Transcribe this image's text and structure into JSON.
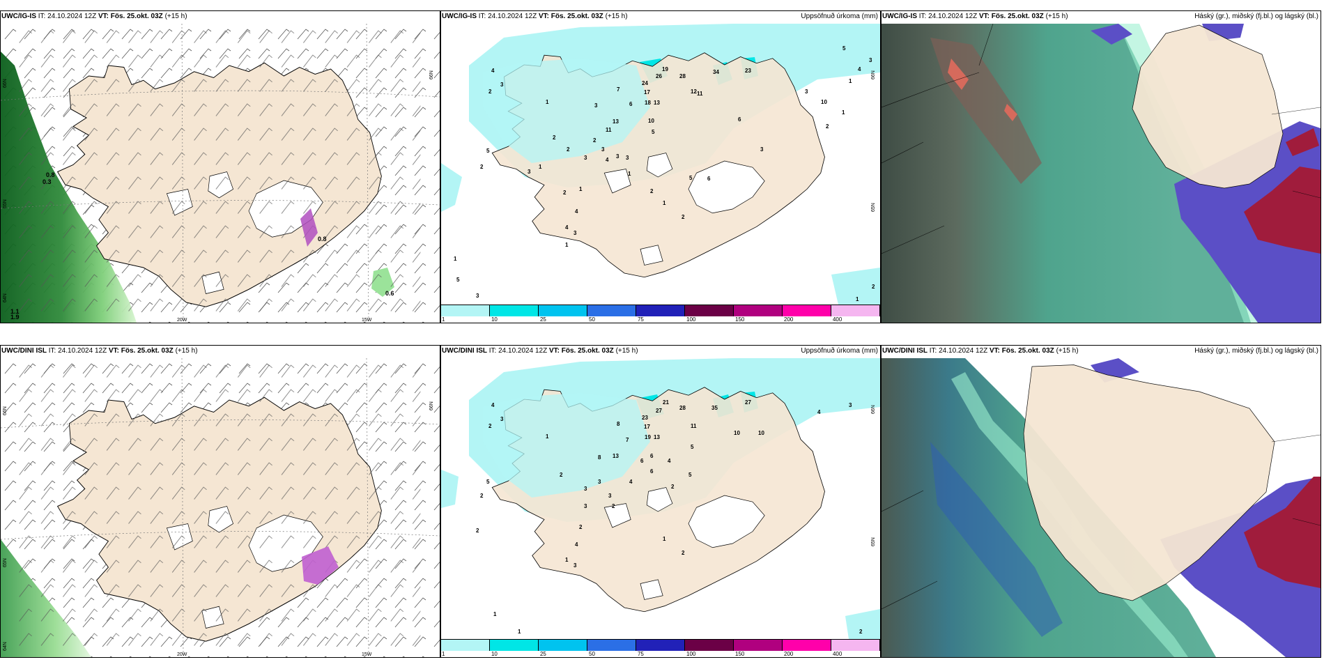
{
  "panels": {
    "top_wind": {
      "model": "UWC/IG-IS",
      "it_label": "IT:",
      "it_value": "24.10.2024 12Z",
      "vt_label": "VT:",
      "vt_value": "Fös. 25.okt. 03Z",
      "lead": "(+15 h)",
      "right_title": ""
    },
    "top_precip": {
      "model": "UWC/IG-IS",
      "it_label": "IT:",
      "it_value": "24.10.2024 12Z",
      "vt_label": "VT:",
      "vt_value": "Fös. 25.okt. 03Z",
      "lead": "(+15 h)",
      "right_title": "Uppsöfnuð úrkoma (mm)"
    },
    "top_cloud": {
      "model": "UWC/IG-IS",
      "it_label": "IT:",
      "it_value": "24.10.2024 12Z",
      "vt_label": "VT:",
      "vt_value": "Fös. 25.okt. 03Z",
      "lead": "(+15 h)",
      "right_title": "Háský (gr.), miðský (fj.bl.) og lágský (bl.)"
    },
    "bottom_wind": {
      "model": "UWC/DINI ISL",
      "it_label": "IT:",
      "it_value": "24.10.2024 12Z",
      "vt_label": "VT:",
      "vt_value": "Fös. 25.okt. 03Z",
      "lead": "(+15 h)",
      "right_title": ""
    },
    "bottom_precip": {
      "model": "UWC/DINI ISL",
      "it_label": "IT:",
      "it_value": "24.10.2024 12Z",
      "vt_label": "VT:",
      "vt_value": "Fös. 25.okt. 03Z",
      "lead": "(+15 h)",
      "right_title": "Uppsöfnuð úrkoma (mm)"
    },
    "bottom_cloud": {
      "model": "UWC/DINI ISL",
      "it_label": "IT:",
      "it_value": "24.10.2024 12Z",
      "vt_label": "VT:",
      "vt_value": "Fös. 25.okt. 03Z",
      "lead": "(+15 h)",
      "right_title": "Háský (gr.), miðský (fj.bl.) og lágský (bl.)"
    }
  },
  "axes": {
    "lon_20": "20W",
    "lon_15": "15W",
    "lat_66": "66N",
    "lat_65": "65N",
    "lat_64": "64N"
  },
  "wind_labels_top": [
    "0.8",
    "0.3",
    "0.8",
    "0.6",
    "1.1",
    "1.9"
  ],
  "wind_labels_bottom": [],
  "precip_legend": {
    "ticks": [
      "1",
      "10",
      "25",
      "50",
      "75",
      "100",
      "150",
      "200",
      "400"
    ],
    "colors": [
      "#b3f5f5",
      "#00e6e6",
      "#00c3ef",
      "#2b6fe6",
      "#2121b8",
      "#6b0046",
      "#b0007f",
      "#ff00aa",
      "#f5b6f0"
    ]
  },
  "precip_values_top": [
    "2",
    "5",
    "4",
    "3",
    "2",
    "1",
    "26",
    "24",
    "19",
    "28",
    "34",
    "23",
    "17",
    "18",
    "13",
    "12",
    "11",
    "10",
    "6",
    "13",
    "11",
    "7",
    "3",
    "5",
    "2",
    "3",
    "4",
    "1",
    "2",
    "3",
    "3",
    "3",
    "2",
    "5",
    "6",
    "1",
    "2",
    "4",
    "3",
    "1",
    "4",
    "2",
    "2",
    "1",
    "3",
    "1",
    "5",
    "3",
    "1",
    "6",
    "3",
    "3",
    "5",
    "1",
    "2",
    "1",
    "10",
    "4",
    "3",
    "2",
    "1"
  ],
  "precip_values_bottom": [
    "2",
    "5",
    "4",
    "3",
    "2",
    "1",
    "27",
    "21",
    "28",
    "35",
    "27",
    "23",
    "17",
    "19",
    "13",
    "11",
    "8",
    "7",
    "6",
    "10",
    "13",
    "8",
    "6",
    "3",
    "2",
    "4",
    "5",
    "3",
    "4",
    "3",
    "6",
    "5",
    "2",
    "3",
    "2",
    "1",
    "2",
    "1",
    "3",
    "2",
    "4",
    "2",
    "1",
    "10",
    "4",
    "3",
    "2",
    "1"
  ],
  "colors": {
    "land": "#f5e6d3",
    "sea": "#ffffff",
    "precip_light": "#b3f5f5",
    "wind_green_light": "#c8f0c0",
    "wind_green_dark": "#0b5e1c",
    "cloud_high_teal": "#4fa48d",
    "cloud_mid_blue": "#5b4fc6",
    "cloud_low_red": "#a01c3c"
  }
}
